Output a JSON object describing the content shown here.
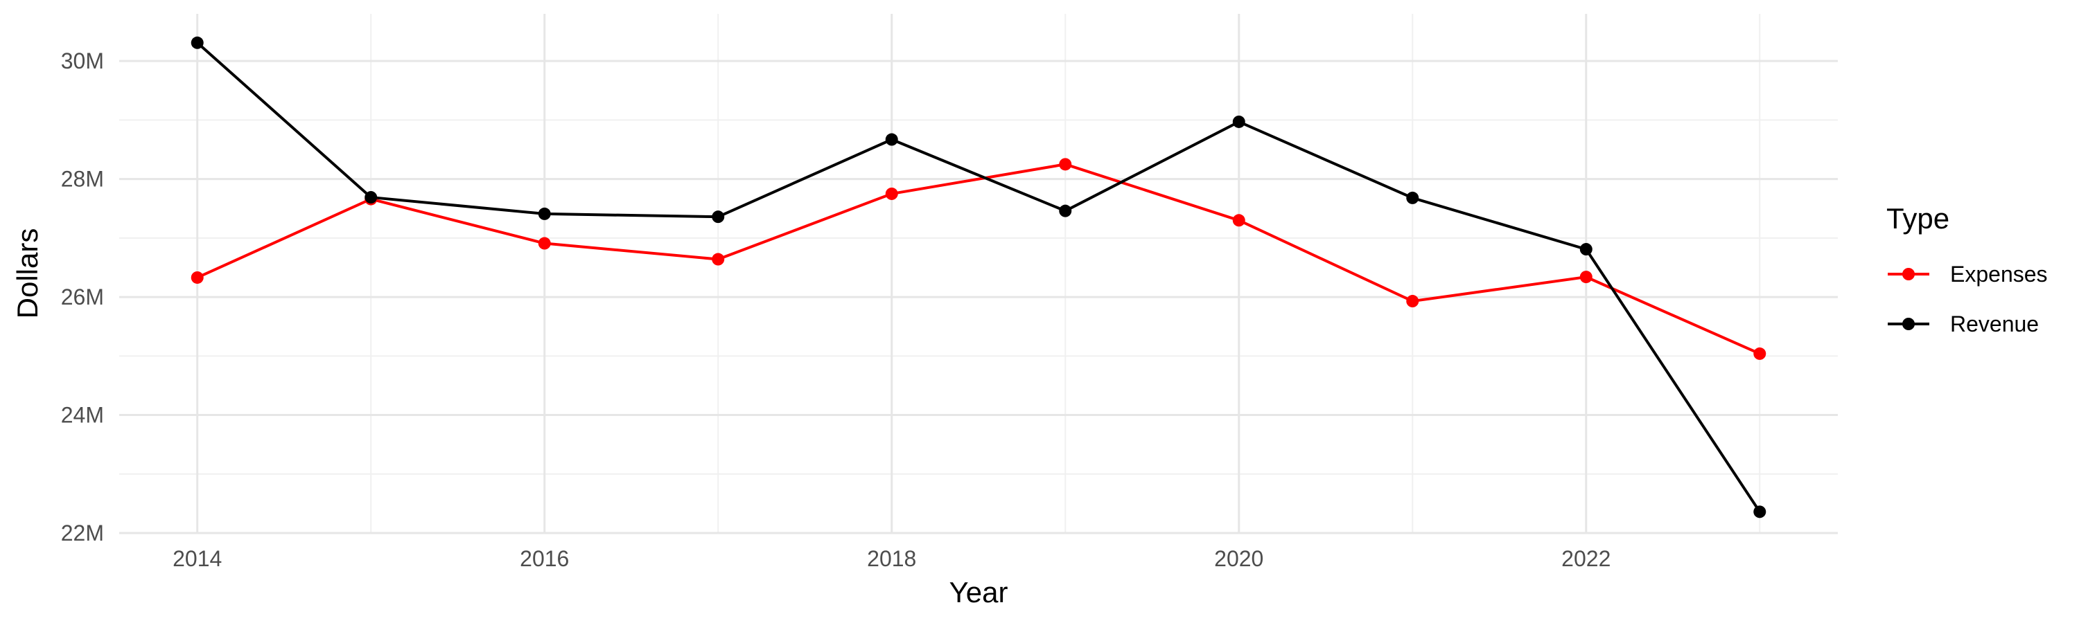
{
  "chart_data": {
    "type": "line",
    "title": "",
    "xlabel": "Year",
    "ylabel": "Dollars",
    "x": [
      2014,
      2015,
      2016,
      2017,
      2018,
      2019,
      2020,
      2021,
      2022,
      2023
    ],
    "x_ticks": [
      2014,
      2016,
      2018,
      2020,
      2022
    ],
    "x_tick_labels": [
      "2014",
      "2016",
      "2018",
      "2020",
      "2022"
    ],
    "xlim": [
      2013.55,
      2023.45
    ],
    "y_ticks": [
      22000000,
      24000000,
      26000000,
      28000000,
      30000000
    ],
    "y_tick_labels": [
      "22M",
      "24M",
      "26M",
      "28M",
      "30M"
    ],
    "ylim": [
      22000000,
      30800000
    ],
    "grid": true,
    "legend": {
      "title": "Type",
      "placement": "right"
    },
    "series": [
      {
        "name": "Expenses",
        "color": "#ff0000",
        "values": [
          26330000,
          27660000,
          26910000,
          26640000,
          27750000,
          28250000,
          27300000,
          25930000,
          26340000,
          25040000
        ]
      },
      {
        "name": "Revenue",
        "color": "#000000",
        "values": [
          30310000,
          27690000,
          27410000,
          27360000,
          28670000,
          27460000,
          28970000,
          27680000,
          26810000,
          22360000
        ]
      }
    ]
  }
}
